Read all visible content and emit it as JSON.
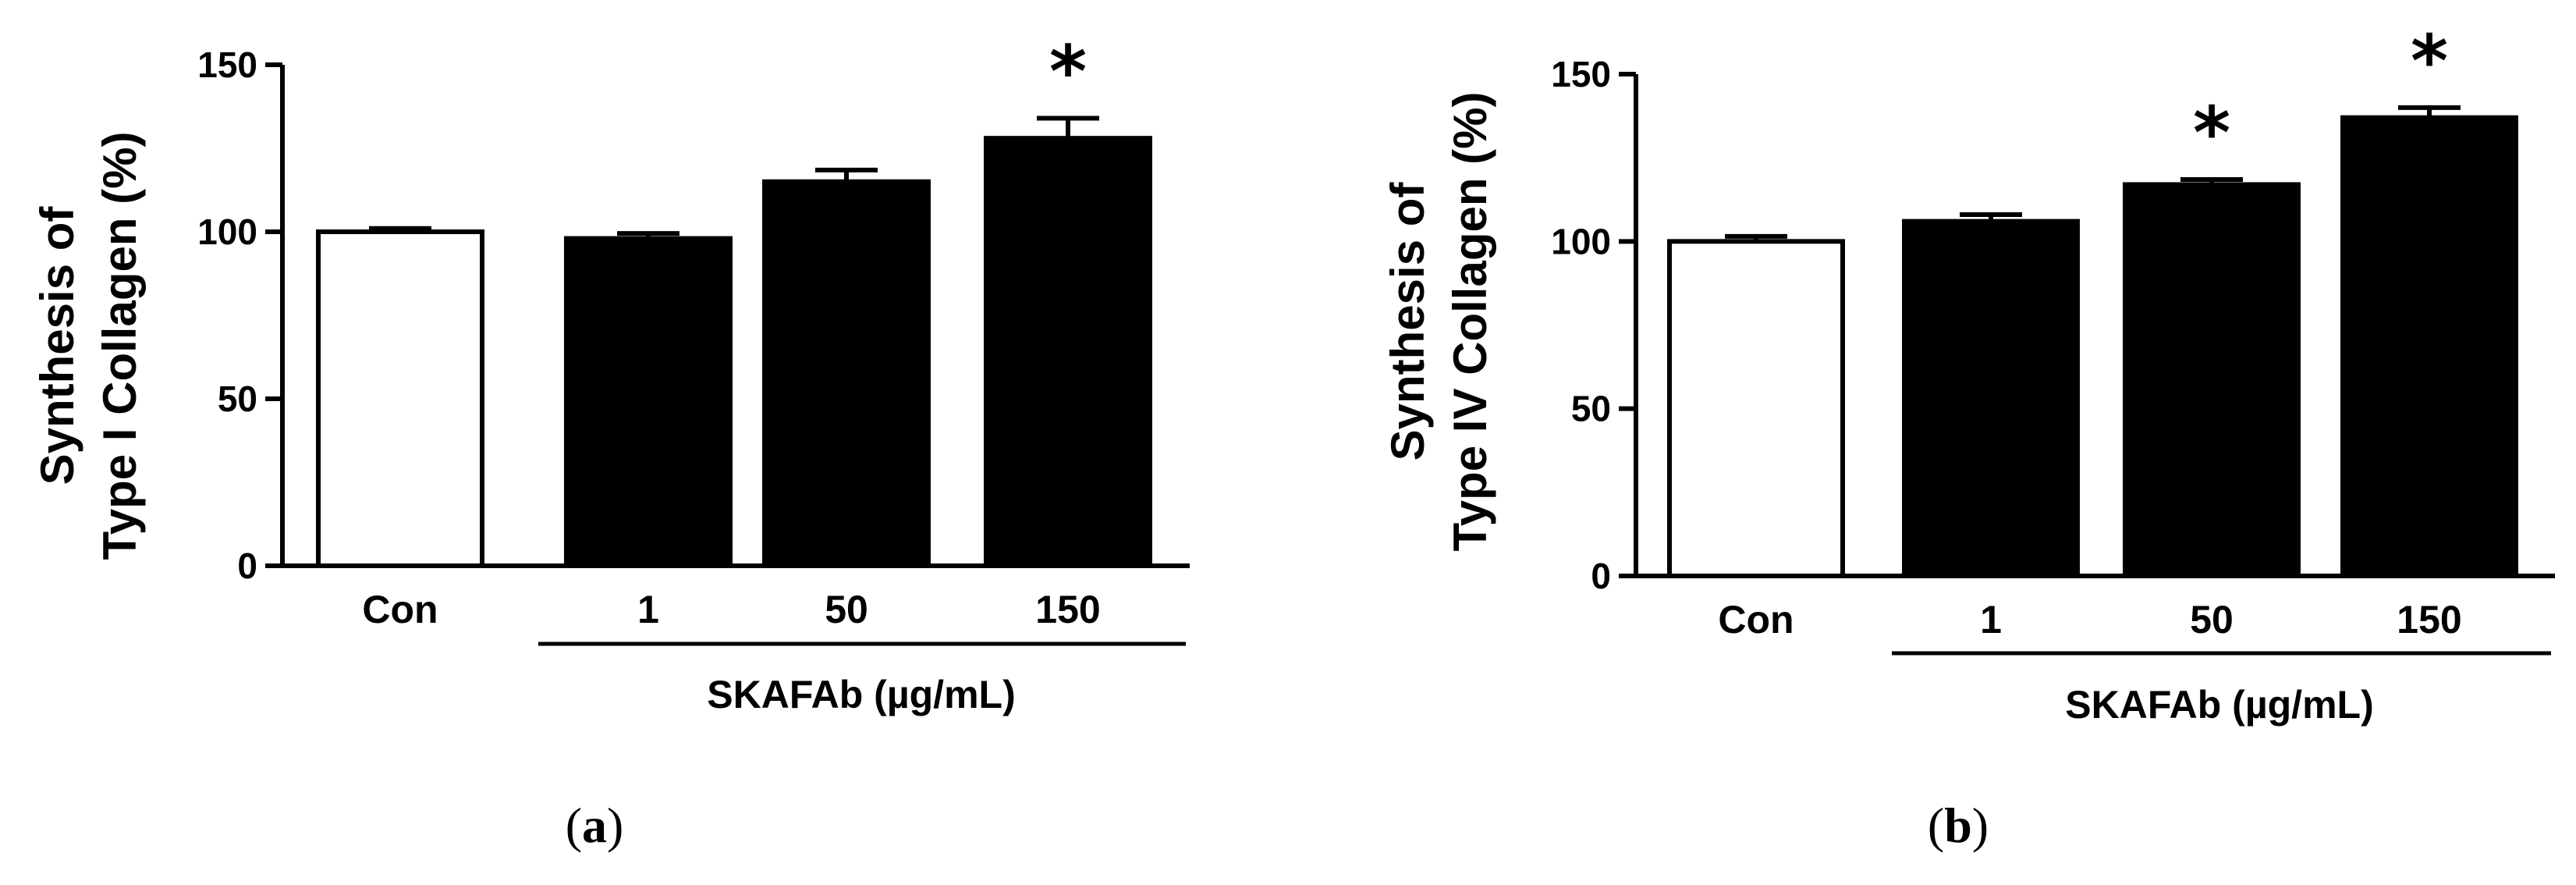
{
  "chart_data": [
    {
      "type": "bar",
      "panel_label_open": "(",
      "panel_label_letter": "a",
      "panel_label_close": ")",
      "ylabel_line1": "Synthesis of",
      "ylabel_line2": "Type I Collagen (%)",
      "ylim": [
        0,
        150
      ],
      "yticks": [
        "0",
        "50",
        "100",
        "150"
      ],
      "categories": [
        "Con",
        "1",
        "50",
        "150"
      ],
      "values": [
        100,
        98,
        115,
        128
      ],
      "errors": [
        1,
        1.5,
        3.5,
        6
      ],
      "fills": [
        "#ffffff",
        "#000000",
        "#000000",
        "#000000"
      ],
      "significance": [
        "",
        "",
        "",
        "*"
      ],
      "group_label": "SKAFAb (µg/mL)"
    },
    {
      "type": "bar",
      "panel_label_open": "(",
      "panel_label_letter": "b",
      "panel_label_close": ")",
      "ylabel_line1": "Synthesis of",
      "ylabel_line2": "Type IV Collagen (%)",
      "ylim": [
        0,
        150
      ],
      "yticks": [
        "0",
        "50",
        "100",
        "150"
      ],
      "categories": [
        "Con",
        "1",
        "50",
        "150"
      ],
      "values": [
        100,
        106,
        117,
        137
      ],
      "errors": [
        1.5,
        2,
        1.5,
        3
      ],
      "fills": [
        "#ffffff",
        "#000000",
        "#000000",
        "#000000"
      ],
      "significance": [
        "",
        "",
        "*",
        "*"
      ],
      "group_label": "SKAFAb (µg/mL)"
    }
  ]
}
